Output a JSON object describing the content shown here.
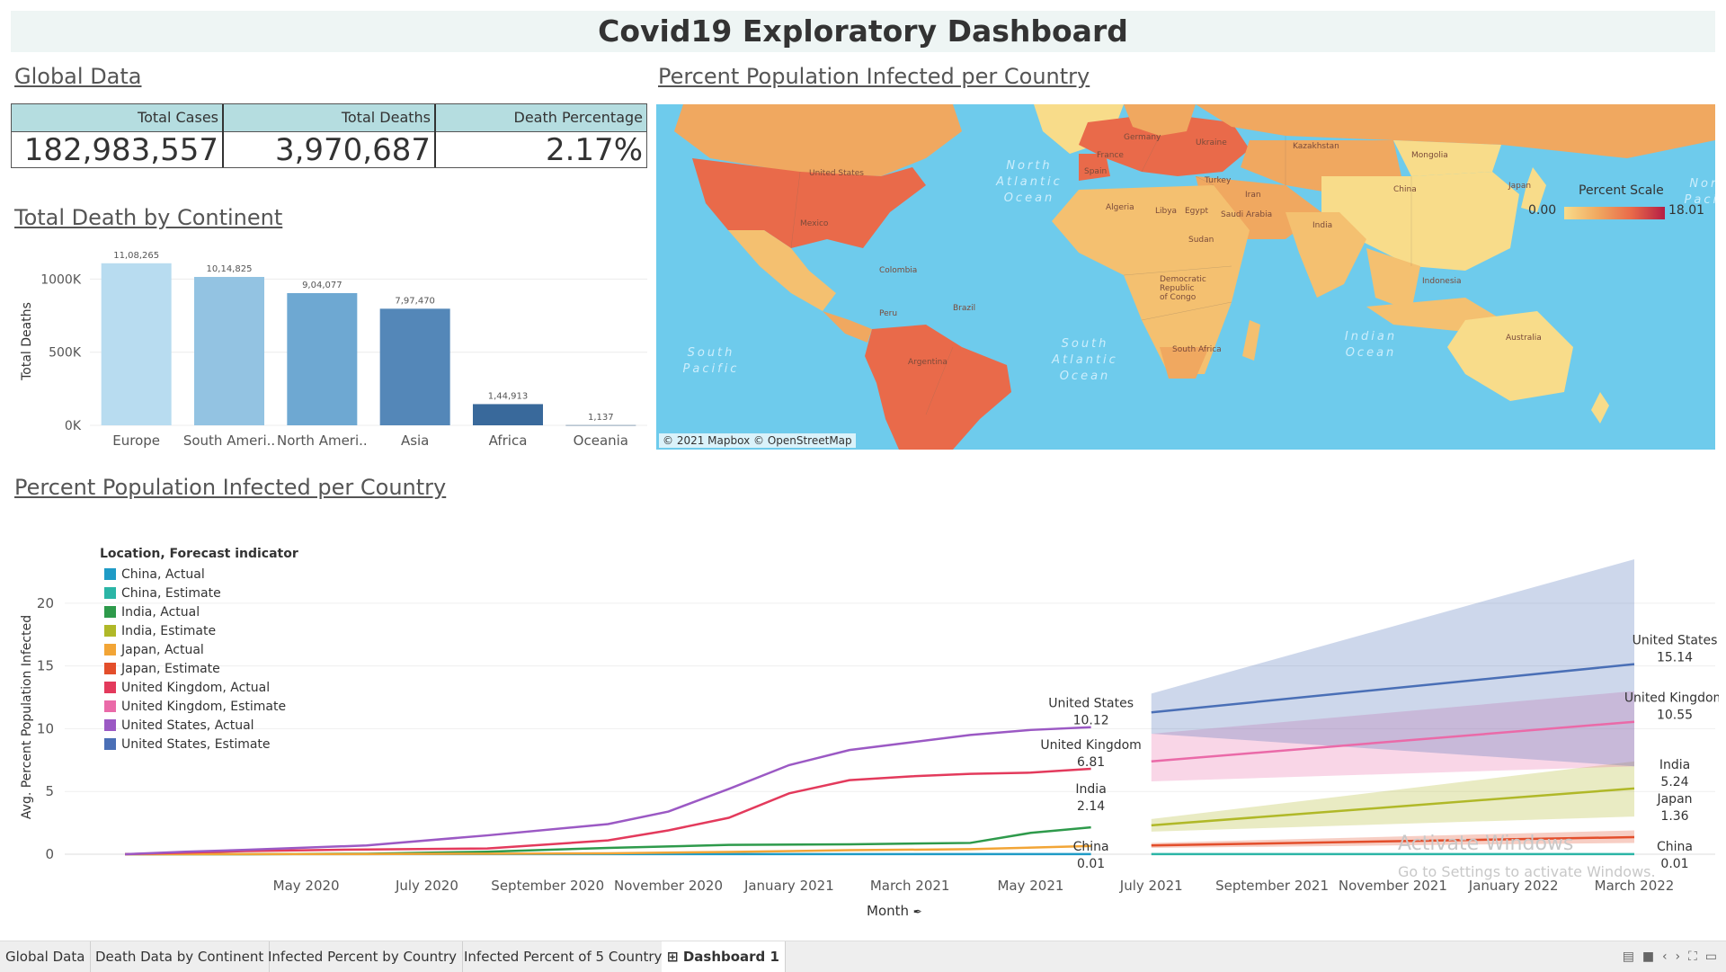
{
  "dashboard": {
    "title": "Covid19 Exploratory Dashboard"
  },
  "global": {
    "title": "Global Data",
    "headers": [
      "Total Cases",
      "Total Deaths",
      "Death Percentage"
    ],
    "values": [
      "182,983,557",
      "3,970,687",
      "2.17%"
    ]
  },
  "continent": {
    "title": "Total Death by Continent"
  },
  "map": {
    "title": "Percent Population Infected per Country",
    "scale_title": "Percent Scale",
    "scale_min": "0.00",
    "scale_max": "18.01",
    "attribution": "© 2021 Mapbox © OpenStreetMap",
    "ocean_labels": [
      "North Atlantic Ocean",
      "South Atlantic Ocean",
      "Indian Ocean",
      "South Pacific",
      "North Pacific"
    ],
    "country_labels": [
      "United States",
      "Mexico",
      "Colombia",
      "Peru",
      "Brazil",
      "Argentina",
      "Germany",
      "France",
      "Spain",
      "Ukraine",
      "Turkey",
      "Kazakhstan",
      "Mongolia",
      "China",
      "India",
      "Iran",
      "Algeria",
      "Libya",
      "Egypt",
      "Saudi Arabia",
      "Sudan",
      "Democratic Republic of Congo",
      "South Africa",
      "Indonesia",
      "Australia",
      "Japan"
    ],
    "colors": {
      "ocean": "#6ecbec",
      "low": "#f8dc8a",
      "mid": "#f0a860",
      "high": "#e96a4a",
      "max": "#b51e44"
    }
  },
  "trend": {
    "title": "Percent Population Infected per Country",
    "legend_title": "Location, Forecast indicator",
    "x_axis_title": "Month",
    "x_axis_icon": "pin-icon"
  },
  "tabs": [
    "Global Data",
    "Death Data by Continent",
    "Infected Percent by Country",
    "Infected Percent of 5 Country",
    "Dashboard 1"
  ],
  "watermark": {
    "line1": "Activate Windows",
    "line2": "Go to Settings to activate Windows."
  },
  "chart_data": [
    {
      "type": "bar",
      "title": "Total Death by Continent",
      "xlabel": "",
      "ylabel": "Total Deaths",
      "categories": [
        "Europe",
        "South Ameri..",
        "North Ameri..",
        "Asia",
        "Africa",
        "Oceania"
      ],
      "values": [
        1108265,
        1014825,
        904077,
        797470,
        144913,
        1137
      ],
      "data_labels": [
        "11,08,265",
        "10,14,825",
        "9,04,077",
        "7,97,470",
        "1,44,913",
        "1,137"
      ],
      "colors": [
        "#b8dcf0",
        "#93c3e2",
        "#6ea8d2",
        "#5487b8",
        "#39699b",
        "#2d567f"
      ],
      "ylim": [
        0,
        1150000
      ],
      "yticks": [
        0,
        500000,
        1000000
      ],
      "ytick_labels": [
        "0K",
        "500K",
        "1000K"
      ],
      "grid": true
    },
    {
      "type": "line",
      "title": "Percent Population Infected per Country",
      "xlabel": "Month",
      "ylabel": "Avg. Percent Population Infected",
      "ylim": [
        0,
        24
      ],
      "yticks": [
        0,
        5,
        10,
        15,
        20
      ],
      "x_ticks": [
        "2020-05",
        "2020-07",
        "2020-09",
        "2020-11",
        "2021-01",
        "2021-03",
        "2021-05",
        "2021-07",
        "2021-09",
        "2021-11",
        "2022-01",
        "2022-03"
      ],
      "x_tick_labels": [
        "May 2020",
        "July 2020",
        "September 2020",
        "November 2020",
        "January 2021",
        "March 2021",
        "May 2021",
        "July 2021",
        "September 2021",
        "November 2021",
        "January 2022",
        "March 2022"
      ],
      "legend_position": "top-left",
      "series": [
        {
          "name": "China, Actual",
          "color": "#1f9bc6",
          "x": [
            "2020-02",
            "2020-04",
            "2020-06",
            "2020-08",
            "2020-10",
            "2020-12",
            "2021-02",
            "2021-04",
            "2021-06"
          ],
          "y": [
            0.006,
            0.006,
            0.006,
            0.006,
            0.006,
            0.006,
            0.006,
            0.007,
            0.007
          ]
        },
        {
          "name": "China, Estimate",
          "color": "#2bb5a6",
          "x": [
            "2021-07",
            "2022-03"
          ],
          "y": [
            0.01,
            0.01
          ],
          "band_upper": [
            0.05,
            0.05
          ],
          "band_lower": [
            0.0,
            0.0
          ]
        },
        {
          "name": "India, Actual",
          "color": "#2e9a4b",
          "x": [
            "2020-02",
            "2020-04",
            "2020-06",
            "2020-08",
            "2020-10",
            "2020-12",
            "2021-02",
            "2021-04",
            "2021-05",
            "2021-06"
          ],
          "y": [
            0.0,
            0.0,
            0.04,
            0.2,
            0.5,
            0.74,
            0.79,
            0.9,
            1.7,
            2.14
          ]
        },
        {
          "name": "India, Estimate",
          "color": "#b0b828",
          "x": [
            "2021-07",
            "2022-03"
          ],
          "y": [
            2.3,
            5.24
          ],
          "band_upper": [
            2.8,
            7.4
          ],
          "band_lower": [
            1.8,
            3.0
          ]
        },
        {
          "name": "Japan, Actual",
          "color": "#f2a536",
          "x": [
            "2020-02",
            "2020-04",
            "2020-06",
            "2020-08",
            "2020-10",
            "2020-12",
            "2021-02",
            "2021-04",
            "2021-06"
          ],
          "y": [
            0.0,
            0.01,
            0.01,
            0.04,
            0.07,
            0.18,
            0.32,
            0.4,
            0.65
          ]
        },
        {
          "name": "Japan, Estimate",
          "color": "#e34e2b",
          "x": [
            "2021-07",
            "2022-03"
          ],
          "y": [
            0.7,
            1.36
          ],
          "band_upper": [
            0.9,
            1.9
          ],
          "band_lower": [
            0.5,
            0.9
          ]
        },
        {
          "name": "United Kingdom, Actual",
          "color": "#e33a5c",
          "x": [
            "2020-02",
            "2020-04",
            "2020-06",
            "2020-08",
            "2020-10",
            "2020-11",
            "2020-12",
            "2021-01",
            "2021-02",
            "2021-03",
            "2021-04",
            "2021-05",
            "2021-06"
          ],
          "y": [
            0.0,
            0.25,
            0.38,
            0.46,
            1.1,
            1.9,
            2.9,
            4.85,
            5.9,
            6.2,
            6.4,
            6.5,
            6.81
          ]
        },
        {
          "name": "United Kingdom, Estimate",
          "color": "#ea6aa8",
          "x": [
            "2021-07",
            "2022-03"
          ],
          "y": [
            7.4,
            10.55
          ],
          "band_upper": [
            9.6,
            13.0
          ],
          "band_lower": [
            5.8,
            7.0
          ]
        },
        {
          "name": "United States, Actual",
          "color": "#9b59c4",
          "x": [
            "2020-02",
            "2020-03",
            "2020-04",
            "2020-06",
            "2020-08",
            "2020-10",
            "2020-11",
            "2020-12",
            "2021-01",
            "2021-02",
            "2021-03",
            "2021-04",
            "2021-05",
            "2021-06"
          ],
          "y": [
            0.0,
            0.2,
            0.35,
            0.7,
            1.5,
            2.4,
            3.4,
            5.2,
            7.1,
            8.3,
            8.9,
            9.5,
            9.9,
            10.12
          ]
        },
        {
          "name": "United States, Estimate",
          "color": "#4a6fb6",
          "x": [
            "2021-07",
            "2022-03"
          ],
          "y": [
            11.3,
            15.14
          ],
          "band_upper": [
            12.8,
            23.5
          ],
          "band_lower": [
            9.6,
            7.0
          ]
        }
      ],
      "end_labels": [
        {
          "name": "United States",
          "value": "10.12",
          "x": "2021-06",
          "y": 10.12
        },
        {
          "name": "United Kingdom",
          "value": "6.81",
          "x": "2021-06",
          "y": 6.81
        },
        {
          "name": "India",
          "value": "2.14",
          "x": "2021-06",
          "y": 2.14
        },
        {
          "name": "China",
          "value": "0.01",
          "x": "2021-06",
          "y": 0.01
        },
        {
          "name": "United States",
          "value": "15.14",
          "x": "2022-03",
          "y": 15.14
        },
        {
          "name": "United Kingdom",
          "value": "10.55",
          "x": "2022-03",
          "y": 10.55
        },
        {
          "name": "India",
          "value": "5.24",
          "x": "2022-03",
          "y": 5.24
        },
        {
          "name": "Japan",
          "value": "1.36",
          "x": "2022-03",
          "y": 1.36
        },
        {
          "name": "China",
          "value": "0.01",
          "x": "2022-03",
          "y": 0.01
        }
      ]
    }
  ]
}
